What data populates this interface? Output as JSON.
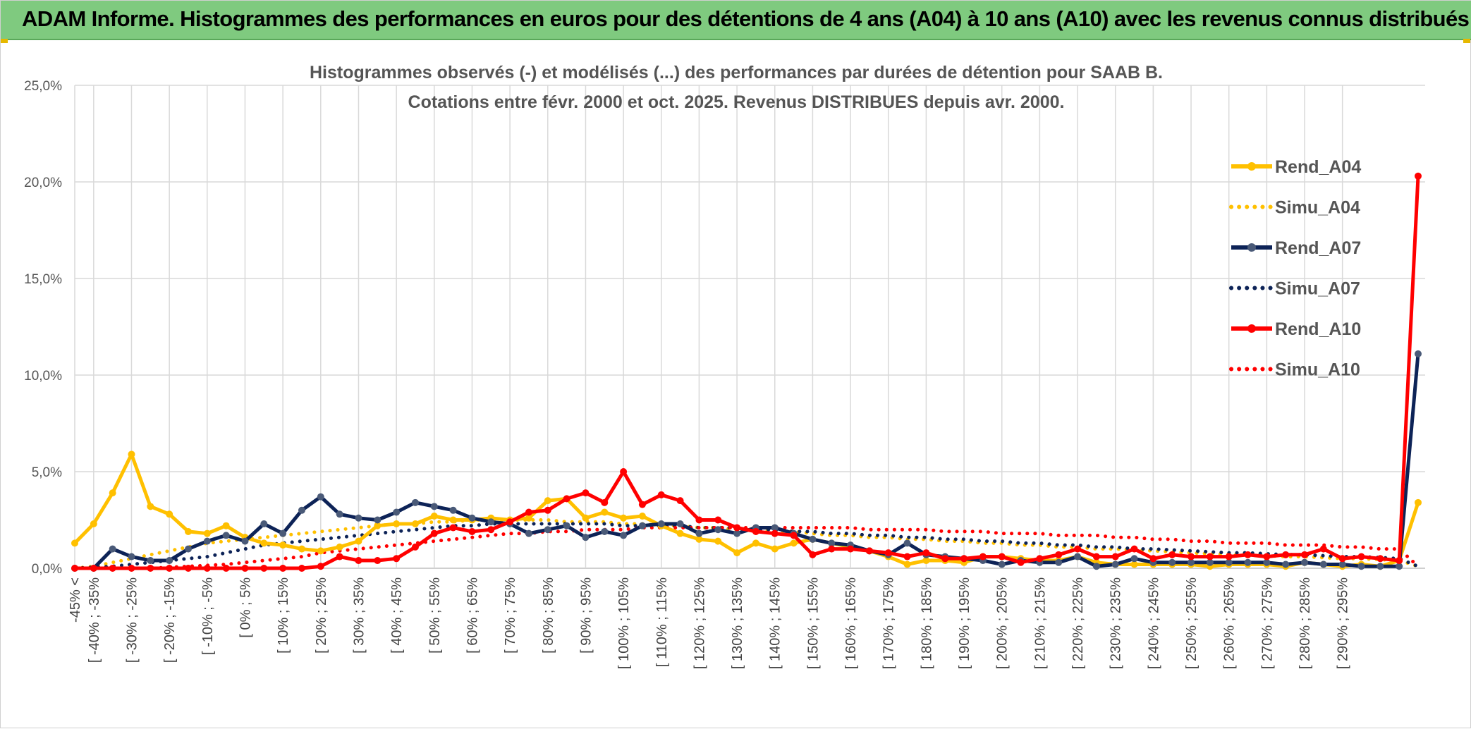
{
  "banner": {
    "title": "ADAM Informe. Histogrammes des performances en euros pour des détentions de 4 ans (A04) à 10 ans (A10) avec les revenus connus distribués"
  },
  "colors": {
    "banner_bg": "#7fca7f",
    "gold": "#FFC000",
    "navy": "#0d2357",
    "red": "#ff0000"
  },
  "chart_data": {
    "type": "line",
    "title": "Histogrammes observés (-) et modélisés (...) des performances par durées de détention pour SAAB B.",
    "subtitle": "Cotations entre févr. 2000 et oct. 2025. Revenus DISTRIBUES depuis avr. 2000.",
    "ylim": [
      0,
      25
    ],
    "yticks": [
      "0,0%",
      "5,0%",
      "10,0%",
      "15,0%",
      "20,0%",
      "25,0%"
    ],
    "grid": true,
    "legend_position": "right",
    "x_labels": [
      "-45% <",
      "[ -40% ; -35%",
      "[ -30% ; -25%",
      "[ -20% ; -15%",
      "[ -10% ; -5%",
      "[ 0% ; 5%",
      "[ 10% ; 15%",
      "[ 20% ; 25%",
      "[ 30% ; 35%",
      "[ 40% ; 45%",
      "[ 50% ; 55%",
      "[ 60% ; 65%",
      "[ 70% ; 75%",
      "[ 80% ; 85%",
      "[ 90% ; 95%",
      "[ 100% ; 105%",
      "[ 110% ; 115%",
      "[ 120% ; 125%",
      "[ 130% ; 135%",
      "[ 140% ; 145%",
      "[ 150% ; 155%",
      "[ 160% ; 165%",
      "[ 170% ; 175%",
      "[ 180% ; 185%",
      "[ 190% ; 195%",
      "[ 200% ; 205%",
      "[ 210% ; 215%",
      "[ 220% ; 225%",
      "[ 230% ; 235%",
      "[ 240% ; 245%",
      "[ 250% ; 255%",
      "[ 260% ; 265%",
      "[ 270% ; 275%",
      "[ 280% ; 285%",
      "[ 290% ; 295%"
    ],
    "series": [
      {
        "name": "Rend_A04",
        "style": "solid",
        "color": "#FFC000",
        "values": [
          1.3,
          2.3,
          3.9,
          5.9,
          3.2,
          2.8,
          1.9,
          1.8,
          2.2,
          1.6,
          1.3,
          1.2,
          1.0,
          0.9,
          1.1,
          1.4,
          2.2,
          2.3,
          2.3,
          2.7,
          2.5,
          2.5,
          2.6,
          2.5,
          2.6,
          3.5,
          3.6,
          2.6,
          2.9,
          2.6,
          2.7,
          2.2,
          1.8,
          1.5,
          1.4,
          0.8,
          1.3,
          1.0,
          1.3,
          1.5,
          1.3,
          1.1,
          0.9,
          0.6,
          0.2,
          0.4,
          0.4,
          0.3,
          0.6,
          0.6,
          0.5,
          0.4,
          0.4,
          0.6,
          0.3,
          0.2,
          0.2,
          0.2,
          0.2,
          0.2,
          0.1,
          0.2,
          0.2,
          0.2,
          0.1,
          0.3,
          0.2,
          0.1,
          0.2,
          0.1,
          0.4,
          3.4
        ]
      },
      {
        "name": "Simu_A04",
        "style": "dotted",
        "color": "#FFC000",
        "values": [
          0.0,
          0.1,
          0.3,
          0.5,
          0.7,
          0.9,
          1.1,
          1.3,
          1.4,
          1.5,
          1.6,
          1.7,
          1.8,
          1.9,
          2.0,
          2.1,
          2.2,
          2.3,
          2.3,
          2.4,
          2.4,
          2.5,
          2.5,
          2.5,
          2.5,
          2.5,
          2.4,
          2.4,
          2.4,
          2.3,
          2.3,
          2.2,
          2.2,
          2.1,
          2.1,
          2.0,
          2.0,
          1.9,
          1.9,
          1.8,
          1.7,
          1.7,
          1.6,
          1.6,
          1.5,
          1.5,
          1.4,
          1.4,
          1.3,
          1.3,
          1.2,
          1.2,
          1.1,
          1.1,
          1.0,
          1.0,
          0.95,
          0.9,
          0.85,
          0.8,
          0.75,
          0.7,
          0.7,
          0.65,
          0.6,
          0.6,
          0.55,
          0.5,
          0.5,
          0.45,
          0.4,
          0.1
        ]
      },
      {
        "name": "Rend_A07",
        "style": "solid",
        "color": "#0d2357",
        "values": [
          0.0,
          0.0,
          1.0,
          0.6,
          0.4,
          0.4,
          1.0,
          1.4,
          1.7,
          1.4,
          2.3,
          1.8,
          3.0,
          3.7,
          2.8,
          2.6,
          2.5,
          2.9,
          3.4,
          3.2,
          3.0,
          2.6,
          2.4,
          2.3,
          1.8,
          2.0,
          2.2,
          1.6,
          1.9,
          1.7,
          2.2,
          2.3,
          2.3,
          1.8,
          2.0,
          1.8,
          2.1,
          2.1,
          1.8,
          1.5,
          1.3,
          1.2,
          0.9,
          0.7,
          1.3,
          0.7,
          0.6,
          0.5,
          0.4,
          0.2,
          0.4,
          0.3,
          0.3,
          0.6,
          0.1,
          0.2,
          0.5,
          0.3,
          0.3,
          0.3,
          0.3,
          0.3,
          0.3,
          0.3,
          0.2,
          0.3,
          0.2,
          0.2,
          0.1,
          0.1,
          0.1,
          11.1
        ]
      },
      {
        "name": "Simu_A07",
        "style": "dotted",
        "color": "#0d2357",
        "values": [
          0.0,
          0.05,
          0.1,
          0.2,
          0.3,
          0.4,
          0.5,
          0.6,
          0.8,
          1.0,
          1.2,
          1.3,
          1.4,
          1.5,
          1.6,
          1.7,
          1.8,
          1.9,
          2.0,
          2.1,
          2.2,
          2.2,
          2.3,
          2.3,
          2.3,
          2.3,
          2.3,
          2.3,
          2.3,
          2.2,
          2.2,
          2.2,
          2.2,
          2.1,
          2.1,
          2.1,
          2.0,
          2.0,
          1.9,
          1.9,
          1.8,
          1.8,
          1.7,
          1.7,
          1.6,
          1.6,
          1.5,
          1.5,
          1.4,
          1.4,
          1.3,
          1.3,
          1.2,
          1.2,
          1.1,
          1.1,
          1.0,
          1.0,
          0.95,
          0.9,
          0.85,
          0.8,
          0.8,
          0.75,
          0.7,
          0.7,
          0.65,
          0.6,
          0.6,
          0.55,
          0.5,
          0.1
        ]
      },
      {
        "name": "Rend_A10",
        "style": "solid",
        "color": "#ff0000",
        "values": [
          0.0,
          0.0,
          0.0,
          0.0,
          0.0,
          0.0,
          0.0,
          0.0,
          0.0,
          0.0,
          0.0,
          0.0,
          0.0,
          0.1,
          0.6,
          0.4,
          0.4,
          0.5,
          1.1,
          1.8,
          2.1,
          1.9,
          2.0,
          2.4,
          2.9,
          3.0,
          3.6,
          3.9,
          3.4,
          5.0,
          3.3,
          3.8,
          3.5,
          2.5,
          2.5,
          2.1,
          1.9,
          1.8,
          1.7,
          0.7,
          1.0,
          1.0,
          0.9,
          0.8,
          0.6,
          0.8,
          0.5,
          0.5,
          0.6,
          0.6,
          0.3,
          0.5,
          0.7,
          1.0,
          0.6,
          0.6,
          1.0,
          0.5,
          0.7,
          0.6,
          0.6,
          0.6,
          0.7,
          0.6,
          0.7,
          0.7,
          1.0,
          0.5,
          0.6,
          0.5,
          0.4,
          20.3
        ]
      },
      {
        "name": "Simu_A10",
        "style": "dotted",
        "color": "#ff0000",
        "values": [
          0.0,
          0.0,
          0.0,
          0.0,
          0.0,
          0.05,
          0.1,
          0.15,
          0.2,
          0.3,
          0.4,
          0.5,
          0.6,
          0.8,
          0.9,
          1.0,
          1.1,
          1.2,
          1.3,
          1.4,
          1.5,
          1.6,
          1.7,
          1.8,
          1.8,
          1.9,
          1.9,
          2.0,
          2.0,
          2.0,
          2.1,
          2.1,
          2.1,
          2.1,
          2.1,
          2.1,
          2.1,
          2.1,
          2.1,
          2.1,
          2.1,
          2.1,
          2.0,
          2.0,
          2.0,
          2.0,
          1.9,
          1.9,
          1.9,
          1.8,
          1.8,
          1.8,
          1.7,
          1.7,
          1.7,
          1.6,
          1.6,
          1.5,
          1.5,
          1.4,
          1.4,
          1.3,
          1.3,
          1.3,
          1.2,
          1.2,
          1.2,
          1.1,
          1.1,
          1.0,
          1.0,
          0.1
        ]
      }
    ]
  }
}
